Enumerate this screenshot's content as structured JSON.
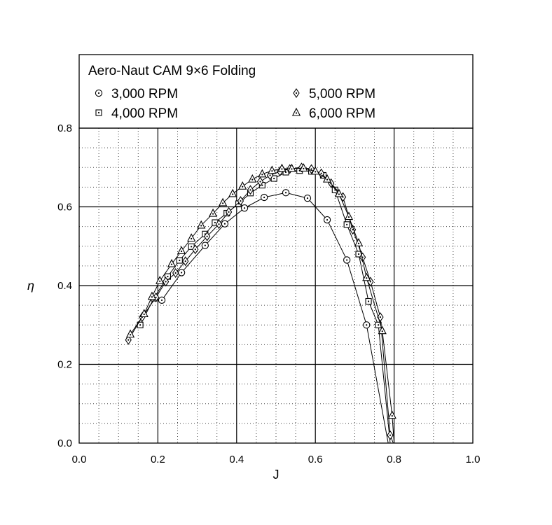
{
  "chart_data": {
    "type": "line",
    "title": "Aero-Naut CAM 9×6 Folding",
    "xlabel": "J",
    "ylabel": "η",
    "xlim": [
      0.0,
      1.0
    ],
    "ylim": [
      0.0,
      0.8
    ],
    "x_ticks": [
      "0.0",
      "0.2",
      "0.4",
      "0.6",
      "0.8",
      "1.0"
    ],
    "y_ticks": [
      "0.0",
      "0.2",
      "0.4",
      "0.6",
      "0.8"
    ],
    "grid": "major solid, minor dotted",
    "legend_position": "top, inside title box, two columns",
    "series": [
      {
        "name": "3,000 RPM",
        "marker": "circle-dot",
        "x": [
          0.21,
          0.26,
          0.32,
          0.37,
          0.42,
          0.47,
          0.525,
          0.58,
          0.63,
          0.68,
          0.73,
          0.785
        ],
        "y": [
          0.363,
          0.433,
          0.502,
          0.557,
          0.597,
          0.624,
          0.636,
          0.622,
          0.567,
          0.465,
          0.3,
          0.0
        ]
      },
      {
        "name": "4,000 RPM",
        "marker": "square-dot",
        "x": [
          0.155,
          0.19,
          0.225,
          0.255,
          0.285,
          0.32,
          0.345,
          0.375,
          0.405,
          0.435,
          0.465,
          0.495,
          0.525,
          0.56,
          0.59,
          0.62,
          0.65,
          0.68,
          0.71,
          0.735,
          0.76,
          0.79
        ],
        "y": [
          0.3,
          0.368,
          0.423,
          0.464,
          0.499,
          0.531,
          0.56,
          0.584,
          0.608,
          0.635,
          0.655,
          0.672,
          0.688,
          0.692,
          0.69,
          0.68,
          0.643,
          0.555,
          0.48,
          0.36,
          0.3,
          0.0
        ]
      },
      {
        "name": "5,000 RPM",
        "marker": "diamond-dot",
        "x": [
          0.125,
          0.16,
          0.195,
          0.22,
          0.245,
          0.27,
          0.295,
          0.325,
          0.355,
          0.38,
          0.41,
          0.435,
          0.46,
          0.485,
          0.51,
          0.535,
          0.565,
          0.59,
          0.615,
          0.64,
          0.67,
          0.695,
          0.72,
          0.74,
          0.765,
          0.79,
          0.798
        ],
        "y": [
          0.262,
          0.32,
          0.37,
          0.41,
          0.432,
          0.462,
          0.492,
          0.525,
          0.556,
          0.587,
          0.615,
          0.643,
          0.664,
          0.68,
          0.69,
          0.696,
          0.7,
          0.696,
          0.685,
          0.66,
          0.625,
          0.542,
          0.472,
          0.41,
          0.32,
          0.02,
          0.0
        ]
      },
      {
        "name": "6,000 RPM",
        "marker": "triangle-dot",
        "x": [
          0.13,
          0.165,
          0.185,
          0.205,
          0.235,
          0.26,
          0.285,
          0.31,
          0.34,
          0.365,
          0.39,
          0.415,
          0.44,
          0.465,
          0.49,
          0.515,
          0.54,
          0.57,
          0.6,
          0.63,
          0.66,
          0.685,
          0.71,
          0.73,
          0.77,
          0.795,
          0.8
        ],
        "y": [
          0.276,
          0.328,
          0.372,
          0.412,
          0.455,
          0.488,
          0.52,
          0.553,
          0.583,
          0.61,
          0.633,
          0.652,
          0.67,
          0.683,
          0.692,
          0.697,
          0.697,
          0.698,
          0.69,
          0.67,
          0.633,
          0.575,
          0.508,
          0.42,
          0.285,
          0.07,
          0.0
        ]
      }
    ]
  }
}
